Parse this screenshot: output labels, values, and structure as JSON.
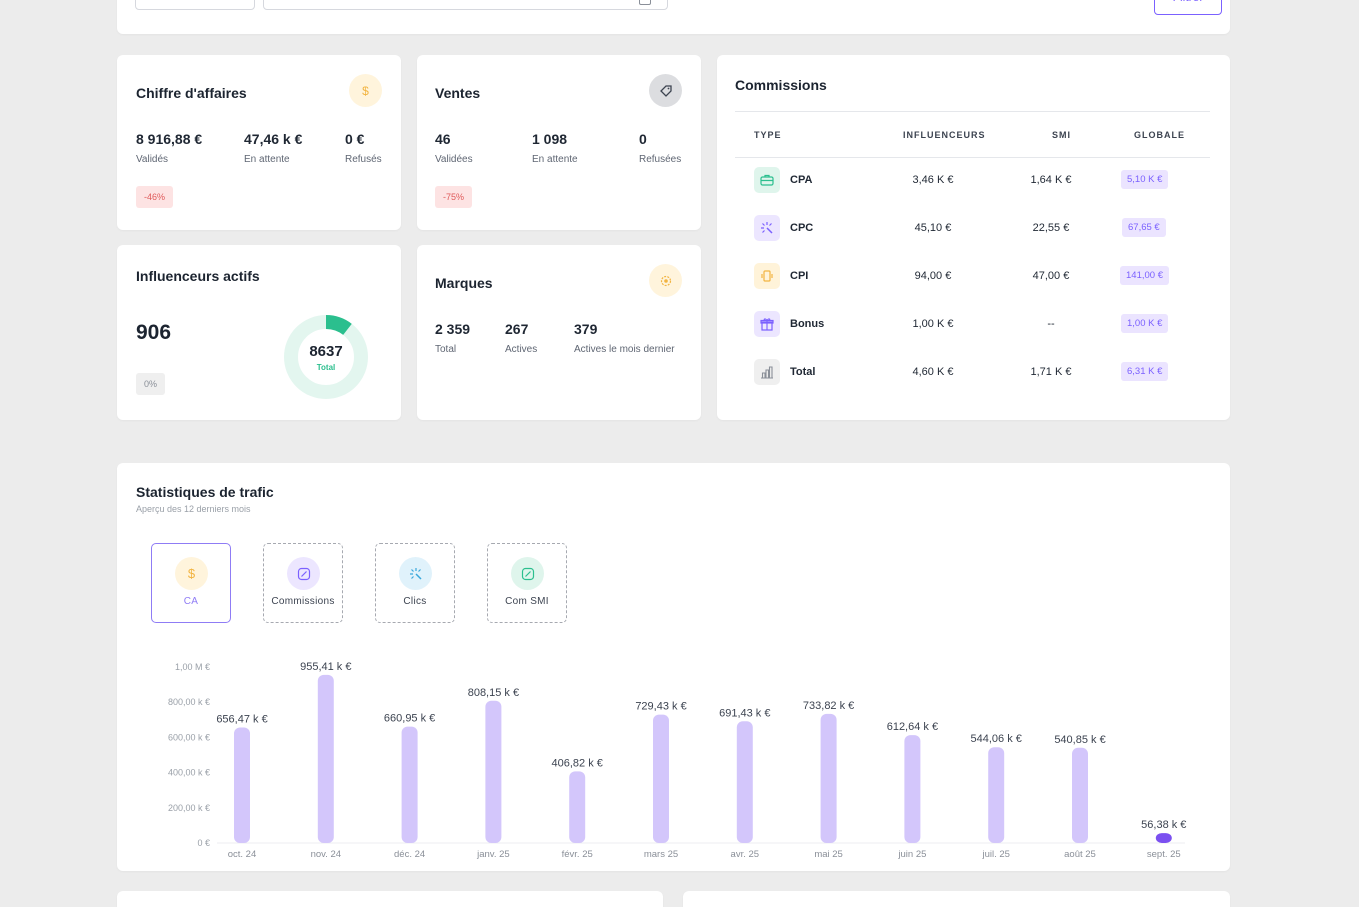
{
  "filter": {
    "button_label": "Filtrer"
  },
  "revenue": {
    "title": "Chiffre d'affaires",
    "icon": "dollar-icon",
    "stats": [
      {
        "value": "8 916,88 €",
        "label": "Validés"
      },
      {
        "value": "47,46 k €",
        "label": "En attente"
      },
      {
        "value": "0 €",
        "label": "Refusés"
      }
    ],
    "badge": "-46%"
  },
  "sales": {
    "title": "Ventes",
    "icon": "tag-icon",
    "stats": [
      {
        "value": "46",
        "label": "Validées"
      },
      {
        "value": "1 098",
        "label": "En attente"
      },
      {
        "value": "0",
        "label": "Refusées"
      }
    ],
    "badge": "-75%"
  },
  "influencers": {
    "title": "Influenceurs actifs",
    "value": "906",
    "badge": "0%",
    "donut_total": "8637",
    "donut_label": "Total",
    "active_fraction": 0.105
  },
  "brands": {
    "title": "Marques",
    "icon": "badge-icon",
    "stats": [
      {
        "value": "2 359",
        "label": "Total"
      },
      {
        "value": "267",
        "label": "Actives"
      },
      {
        "value": "379",
        "label": "Actives le mois dernier"
      }
    ]
  },
  "commissions": {
    "title": "Commissions",
    "headers": [
      "TYPE",
      "INFLUENCEURS",
      "SMI",
      "GLOBALE"
    ],
    "rows": [
      {
        "type": "CPA",
        "icon": "briefcase-icon",
        "influencers": "3,46 K €",
        "smi": "1,64 K €",
        "global": "5,10 K €",
        "color": "#2bbf8e"
      },
      {
        "type": "CPC",
        "icon": "click-icon",
        "influencers": "45,10 €",
        "smi": "22,55 €",
        "global": "67,65 €",
        "color": "#7b61ff"
      },
      {
        "type": "CPI",
        "icon": "phone-icon",
        "influencers": "94,00 €",
        "smi": "47,00 €",
        "global": "141,00 €",
        "color": "#f2b441"
      },
      {
        "type": "Bonus",
        "icon": "gift-icon",
        "influencers": "1,00 K €",
        "smi": "--",
        "global": "1,00 K €",
        "color": "#7b61ff"
      },
      {
        "type": "Total",
        "icon": "bar-chart-icon",
        "influencers": "4,60 K €",
        "smi": "1,71 K €",
        "global": "6,31 K €",
        "color": "#8a8f98"
      }
    ]
  },
  "traffic": {
    "title": "Statistiques de trafic",
    "subtitle": "Aperçu des 12 derniers mois",
    "tabs": [
      {
        "label": "CA",
        "icon": "dollar-icon",
        "active": true
      },
      {
        "label": "Commissions",
        "icon": "percent-icon",
        "active": false
      },
      {
        "label": "Clics",
        "icon": "click-icon",
        "active": false
      },
      {
        "label": "Com SMI",
        "icon": "percent-icon",
        "active": false
      }
    ]
  },
  "colors": {
    "accent": "#7b61ff",
    "bar": "#d3c6fb",
    "bar_highlight": "#7b50f0",
    "green": "#2bbf8e",
    "red": "#e05a5a"
  },
  "chart_data": {
    "type": "bar",
    "categories": [
      "oct. 24",
      "nov. 24",
      "déc. 24",
      "janv. 25",
      "févr. 25",
      "mars 25",
      "avr. 25",
      "mai 25",
      "juin 25",
      "juil. 25",
      "août 25",
      "sept. 25"
    ],
    "values": [
      656.47,
      955.41,
      660.95,
      808.15,
      406.82,
      729.43,
      691.43,
      733.82,
      612.64,
      544.06,
      540.85,
      56.38
    ],
    "value_labels": [
      "656,47 k €",
      "955,41 k €",
      "660,95 k €",
      "808,15 k €",
      "406,82 k €",
      "729,43 k €",
      "691,43 k €",
      "733,82 k €",
      "612,64 k €",
      "544,06 k €",
      "540,85 k €",
      "56,38 k €"
    ],
    "yticks": [
      "0 €",
      "200,00 k €",
      "400,00 k €",
      "600,00 k €",
      "800,00 k €",
      "1,00 M €"
    ],
    "ylim": [
      0,
      1000
    ],
    "highlight_index": 11,
    "grid": false
  }
}
